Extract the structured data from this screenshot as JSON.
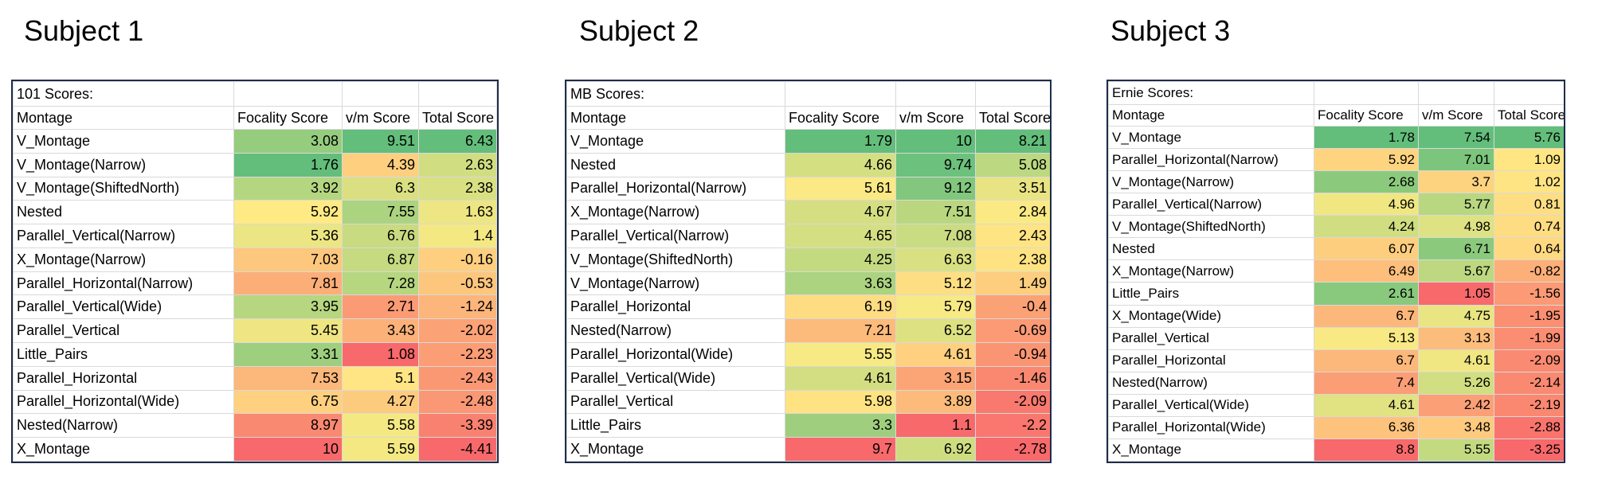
{
  "subjects": [
    {
      "title": "Subject 1",
      "sheet_label": "101 Scores:",
      "headers": [
        "Montage",
        "Focality Score",
        "v/m Score",
        "Total Score"
      ],
      "rows": [
        {
          "montage": "V_Montage",
          "focality": "3.08",
          "vm": "9.51",
          "total": "6.43"
        },
        {
          "montage": "V_Montage(Narrow)",
          "focality": "1.76",
          "vm": "4.39",
          "total": "2.63"
        },
        {
          "montage": "V_Montage(ShiftedNorth)",
          "focality": "3.92",
          "vm": "6.3",
          "total": "2.38"
        },
        {
          "montage": "Nested",
          "focality": "5.92",
          "vm": "7.55",
          "total": "1.63"
        },
        {
          "montage": "Parallel_Vertical(Narrow)",
          "focality": "5.36",
          "vm": "6.76",
          "total": "1.4"
        },
        {
          "montage": "X_Montage(Narrow)",
          "focality": "7.03",
          "vm": "6.87",
          "total": "-0.16"
        },
        {
          "montage": "Parallel_Horizontal(Narrow)",
          "focality": "7.81",
          "vm": "7.28",
          "total": "-0.53"
        },
        {
          "montage": "Parallel_Vertical(Wide)",
          "focality": "3.95",
          "vm": "2.71",
          "total": "-1.24"
        },
        {
          "montage": "Parallel_Vertical",
          "focality": "5.45",
          "vm": "3.43",
          "total": "-2.02"
        },
        {
          "montage": "Little_Pairs",
          "focality": "3.31",
          "vm": "1.08",
          "total": "-2.23"
        },
        {
          "montage": "Parallel_Horizontal",
          "focality": "7.53",
          "vm": "5.1",
          "total": "-2.43"
        },
        {
          "montage": "Parallel_Horizontal(Wide)",
          "focality": "6.75",
          "vm": "4.27",
          "total": "-2.48"
        },
        {
          "montage": "Nested(Narrow)",
          "focality": "8.97",
          "vm": "5.58",
          "total": "-3.39"
        },
        {
          "montage": "X_Montage",
          "focality": "10",
          "vm": "5.59",
          "total": "-4.41"
        }
      ]
    },
    {
      "title": "Subject 2",
      "sheet_label": "MB Scores:",
      "headers": [
        "Montage",
        "Focality Score",
        "v/m Score",
        "Total Score"
      ],
      "rows": [
        {
          "montage": "V_Montage",
          "focality": "1.79",
          "vm": "10",
          "total": "8.21"
        },
        {
          "montage": "Nested",
          "focality": "4.66",
          "vm": "9.74",
          "total": "5.08"
        },
        {
          "montage": "Parallel_Horizontal(Narrow)",
          "focality": "5.61",
          "vm": "9.12",
          "total": "3.51"
        },
        {
          "montage": "X_Montage(Narrow)",
          "focality": "4.67",
          "vm": "7.51",
          "total": "2.84"
        },
        {
          "montage": "Parallel_Vertical(Narrow)",
          "focality": "4.65",
          "vm": "7.08",
          "total": "2.43"
        },
        {
          "montage": "V_Montage(ShiftedNorth)",
          "focality": "4.25",
          "vm": "6.63",
          "total": "2.38"
        },
        {
          "montage": "V_Montage(Narrow)",
          "focality": "3.63",
          "vm": "5.12",
          "total": "1.49"
        },
        {
          "montage": "Parallel_Horizontal",
          "focality": "6.19",
          "vm": "5.79",
          "total": "-0.4"
        },
        {
          "montage": "Nested(Narrow)",
          "focality": "7.21",
          "vm": "6.52",
          "total": "-0.69"
        },
        {
          "montage": "Parallel_Horizontal(Wide)",
          "focality": "5.55",
          "vm": "4.61",
          "total": "-0.94"
        },
        {
          "montage": "Parallel_Vertical(Wide)",
          "focality": "4.61",
          "vm": "3.15",
          "total": "-1.46"
        },
        {
          "montage": "Parallel_Vertical",
          "focality": "5.98",
          "vm": "3.89",
          "total": "-2.09"
        },
        {
          "montage": "Little_Pairs",
          "focality": "3.3",
          "vm": "1.1",
          "total": "-2.2"
        },
        {
          "montage": "X_Montage",
          "focality": "9.7",
          "vm": "6.92",
          "total": "-2.78"
        }
      ]
    },
    {
      "title": "Subject 3",
      "sheet_label": "Ernie Scores:",
      "headers": [
        "Montage",
        "Focality Score",
        "v/m Score",
        "Total Score"
      ],
      "rows": [
        {
          "montage": "V_Montage",
          "focality": "1.78",
          "vm": "7.54",
          "total": "5.76"
        },
        {
          "montage": "Parallel_Horizontal(Narrow)",
          "focality": "5.92",
          "vm": "7.01",
          "total": "1.09"
        },
        {
          "montage": "V_Montage(Narrow)",
          "focality": "2.68",
          "vm": "3.7",
          "total": "1.02"
        },
        {
          "montage": "Parallel_Vertical(Narrow)",
          "focality": "4.96",
          "vm": "5.77",
          "total": "0.81"
        },
        {
          "montage": "V_Montage(ShiftedNorth)",
          "focality": "4.24",
          "vm": "4.98",
          "total": "0.74"
        },
        {
          "montage": "Nested",
          "focality": "6.07",
          "vm": "6.71",
          "total": "0.64"
        },
        {
          "montage": "X_Montage(Narrow)",
          "focality": "6.49",
          "vm": "5.67",
          "total": "-0.82"
        },
        {
          "montage": "Little_Pairs",
          "focality": "2.61",
          "vm": "1.05",
          "total": "-1.56"
        },
        {
          "montage": "X_Montage(Wide)",
          "focality": "6.7",
          "vm": "4.75",
          "total": "-1.95"
        },
        {
          "montage": "Parallel_Vertical",
          "focality": "5.13",
          "vm": "3.13",
          "total": "-1.99"
        },
        {
          "montage": "Parallel_Horizontal",
          "focality": "6.7",
          "vm": "4.61",
          "total": "-2.09"
        },
        {
          "montage": "Nested(Narrow)",
          "focality": "7.4",
          "vm": "5.26",
          "total": "-2.14"
        },
        {
          "montage": "Parallel_Vertical(Wide)",
          "focality": "4.61",
          "vm": "2.42",
          "total": "-2.19"
        },
        {
          "montage": "Parallel_Horizontal(Wide)",
          "focality": "6.36",
          "vm": "3.48",
          "total": "-2.88"
        },
        {
          "montage": "X_Montage",
          "focality": "8.8",
          "vm": "5.55",
          "total": "-3.25"
        }
      ]
    }
  ],
  "color_scale": {
    "low": "#63be7b",
    "mid": "#ffeb84",
    "high": "#f8696b"
  }
}
